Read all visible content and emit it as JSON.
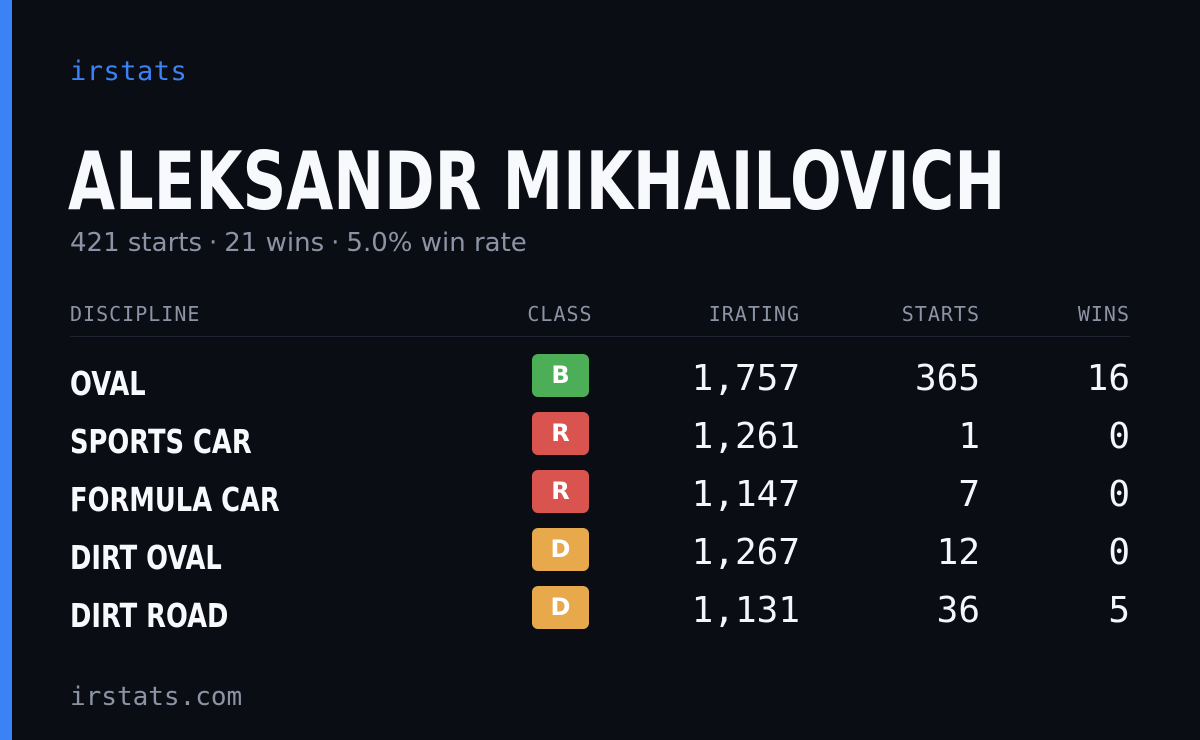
{
  "brand": "irstats",
  "player": {
    "name": "ALEKSANDR MIKHAILOVICH",
    "starts": "421 starts",
    "wins": "21 wins",
    "win_rate": "5.0% win rate",
    "separator": "·"
  },
  "table": {
    "headers": {
      "discipline": "DISCIPLINE",
      "class": "CLASS",
      "irating": "IRATING",
      "starts": "STARTS",
      "wins": "WINS"
    },
    "rows": [
      {
        "discipline": "OVAL",
        "class": "B",
        "class_color": "#4cae56",
        "irating": "1,757",
        "starts": "365",
        "wins": "16"
      },
      {
        "discipline": "SPORTS CAR",
        "class": "R",
        "class_color": "#d9534f",
        "irating": "1,261",
        "starts": "1",
        "wins": "0"
      },
      {
        "discipline": "FORMULA CAR",
        "class": "R",
        "class_color": "#d9534f",
        "irating": "1,147",
        "starts": "7",
        "wins": "0"
      },
      {
        "discipline": "DIRT OVAL",
        "class": "D",
        "class_color": "#e8a94c",
        "irating": "1,267",
        "starts": "12",
        "wins": "0"
      },
      {
        "discipline": "DIRT ROAD",
        "class": "D",
        "class_color": "#e8a94c",
        "irating": "1,131",
        "starts": "36",
        "wins": "5"
      }
    ]
  },
  "footer": "irstats.com",
  "colors": {
    "background": "#0b0d14",
    "accent": "#3b82f6",
    "muted_text": "#8b93a4",
    "primary_text": "#f8f9fc"
  }
}
